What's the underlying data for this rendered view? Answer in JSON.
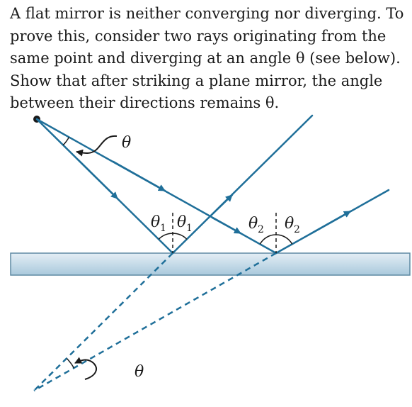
{
  "problem": {
    "lines": [
      "A flat mirror is neither converging nor diverging. To",
      "prove this, consider two rays originating from the",
      "same point and diverging at an angle θ (see below).",
      "Show that after striking a plane mirror, the angle",
      "between their directions remains θ."
    ]
  },
  "diagram": {
    "colors": {
      "ray": "#1f6f99",
      "mirror_top": "#e4eef5",
      "mirror_bottom": "#a9c9dc",
      "mirror_edge": "#5f8aa3",
      "text": "#1a1a1a"
    },
    "labels": {
      "theta": "θ",
      "theta_virtual": "θ",
      "theta1": "θ",
      "theta1_sub": "1",
      "theta2": "θ",
      "theta2_sub": "2"
    }
  }
}
